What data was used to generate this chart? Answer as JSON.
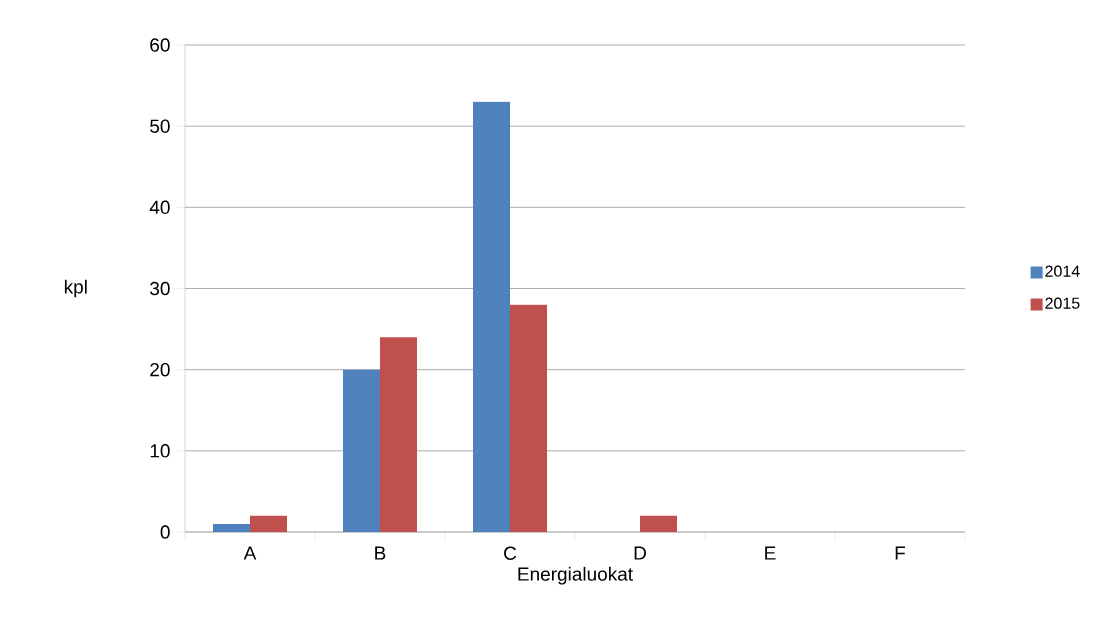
{
  "chart_data": {
    "type": "bar",
    "xlabel": "Energialuokat",
    "ylabel": "kpl",
    "categories": [
      "A",
      "B",
      "C",
      "D",
      "E",
      "F"
    ],
    "series": [
      {
        "name": "2014",
        "color": "#4f81bd",
        "values": [
          1,
          20,
          53,
          0,
          0,
          0
        ]
      },
      {
        "name": "2015",
        "color": "#c0504d",
        "values": [
          2,
          24,
          28,
          2,
          0,
          0
        ]
      }
    ],
    "ylim": [
      0,
      60
    ],
    "yticks": [
      0,
      10,
      20,
      30,
      40,
      50,
      60
    ],
    "grid": "y",
    "legend": "right"
  }
}
